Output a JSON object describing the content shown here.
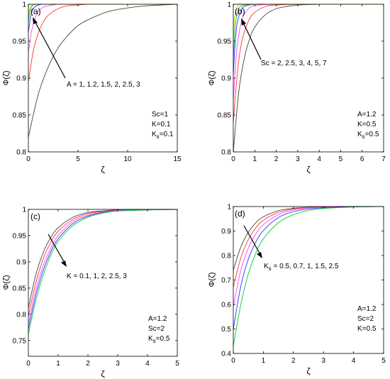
{
  "chart_data": [
    {
      "type": "line",
      "panel_label": "(a)",
      "xlabel": "ζ",
      "ylabel": "Φ(ζ)",
      "xlim": [
        0,
        15
      ],
      "ylim": [
        0.8,
        1.0
      ],
      "xticks": [
        0,
        5,
        10,
        15
      ],
      "yticks": [
        0.8,
        0.85,
        0.9,
        0.95,
        1
      ],
      "xtick_labels": [
        "0",
        "5",
        "10",
        "15"
      ],
      "ytick_labels": [
        "0.8",
        "0.85",
        "0.9",
        "0.95",
        "1"
      ],
      "series_colors": [
        "#444444",
        "#ff3333",
        "#ff44ff",
        "#3333ff",
        "#00cc33",
        "#cccc00"
      ],
      "series": [
        {
          "label": "A = 1",
          "x": [
            0,
            1,
            2,
            3,
            4,
            5,
            6,
            8,
            10,
            12,
            15
          ],
          "values": [
            0.82,
            0.878,
            0.915,
            0.941,
            0.958,
            0.971,
            0.979,
            0.99,
            0.995,
            0.998,
            1.0
          ]
        },
        {
          "label": "A = 1.2",
          "x": [
            0,
            0.5,
            1,
            1.5,
            2,
            3,
            4,
            5,
            6,
            8,
            10,
            15
          ],
          "values": [
            0.895,
            0.937,
            0.961,
            0.976,
            0.985,
            0.994,
            0.998,
            0.999,
            1.0,
            1.0,
            1.0,
            1.0
          ]
        },
        {
          "label": "A = 1.5",
          "x": [
            0,
            0.3,
            0.6,
            1,
            1.5,
            2,
            3,
            4,
            6,
            10,
            15
          ],
          "values": [
            0.935,
            0.962,
            0.978,
            0.99,
            0.996,
            0.998,
            1.0,
            1.0,
            1.0,
            1.0,
            1.0
          ]
        },
        {
          "label": "A = 2",
          "x": [
            0,
            0.2,
            0.4,
            0.7,
            1,
            1.5,
            2,
            3,
            6,
            10,
            15
          ],
          "values": [
            0.962,
            0.981,
            0.991,
            0.997,
            0.999,
            1.0,
            1.0,
            1.0,
            1.0,
            1.0,
            1.0
          ]
        },
        {
          "label": "A = 2.5",
          "x": [
            0,
            0.15,
            0.3,
            0.5,
            0.8,
            1.2,
            2,
            4,
            8,
            15
          ],
          "values": [
            0.976,
            0.99,
            0.996,
            0.999,
            1.0,
            1.0,
            1.0,
            1.0,
            1.0,
            1.0
          ]
        },
        {
          "label": "A = 3",
          "x": [
            0,
            0.1,
            0.2,
            0.4,
            0.7,
            1,
            2,
            4,
            8,
            15
          ],
          "values": [
            0.984,
            0.993,
            0.997,
            0.999,
            1.0,
            1.0,
            1.0,
            1.0,
            1.0,
            1.0
          ]
        }
      ],
      "annotations": [
        "A = 1, 1.2, 1.5, 2, 2.5, 3"
      ],
      "params": [
        "Sc=1",
        "K=0.1",
        "K",
        "s",
        "=0.1"
      ]
    },
    {
      "type": "line",
      "panel_label": "(b)",
      "xlabel": "ζ",
      "ylabel": "Φ(ζ)",
      "xlim": [
        0,
        7
      ],
      "ylim": [
        0.8,
        1.0
      ],
      "xticks": [
        0,
        1,
        2,
        3,
        4,
        5,
        6,
        7
      ],
      "yticks": [
        0.8,
        0.85,
        0.9,
        0.95,
        1
      ],
      "xtick_labels": [
        "0",
        "1",
        "2",
        "3",
        "4",
        "5",
        "6",
        "7"
      ],
      "ytick_labels": [
        "0.8",
        "0.85",
        "0.9",
        "0.95",
        "1"
      ],
      "series_colors": [
        "#444444",
        "#ff3333",
        "#ff44ff",
        "#3333ff",
        "#00cc33",
        "#cccc00"
      ],
      "series": [
        {
          "label": "Sc = 2",
          "x": [
            0,
            0.25,
            0.5,
            0.75,
            1,
            1.5,
            2,
            2.5,
            3,
            4,
            5,
            7
          ],
          "values": [
            0.8,
            0.88,
            0.925,
            0.952,
            0.969,
            0.986,
            0.994,
            0.997,
            0.999,
            1.0,
            1.0,
            1.0
          ]
        },
        {
          "label": "Sc = 2.5",
          "x": [
            0,
            0.2,
            0.4,
            0.7,
            1,
            1.5,
            2,
            3,
            4,
            7
          ],
          "values": [
            0.84,
            0.91,
            0.95,
            0.977,
            0.989,
            0.997,
            0.999,
            1.0,
            1.0,
            1.0
          ]
        },
        {
          "label": "Sc = 3",
          "x": [
            0,
            0.15,
            0.3,
            0.5,
            0.8,
            1.2,
            2,
            3,
            7
          ],
          "values": [
            0.87,
            0.935,
            0.966,
            0.986,
            0.996,
            0.999,
            1.0,
            1.0,
            1.0
          ]
        },
        {
          "label": "Sc = 4",
          "x": [
            0,
            0.1,
            0.2,
            0.4,
            0.6,
            1,
            2,
            7
          ],
          "values": [
            0.905,
            0.953,
            0.977,
            0.994,
            0.998,
            1.0,
            1.0,
            1.0
          ]
        },
        {
          "label": "Sc = 5",
          "x": [
            0,
            0.08,
            0.16,
            0.3,
            0.5,
            1,
            2,
            7
          ],
          "values": [
            0.925,
            0.966,
            0.985,
            0.996,
            0.999,
            1.0,
            1.0,
            1.0
          ]
        },
        {
          "label": "Sc = 7",
          "x": [
            0,
            0.05,
            0.1,
            0.2,
            0.4,
            1,
            7
          ],
          "values": [
            0.95,
            0.978,
            0.99,
            0.998,
            1.0,
            1.0,
            1.0
          ]
        }
      ],
      "annotations": [
        "Sc = 2, 2.5, 3, 4, 5, 7"
      ],
      "params": [
        "A=1.2",
        "K=0.5",
        "K",
        "s",
        "=0.5"
      ]
    },
    {
      "type": "line",
      "panel_label": "(c)",
      "xlabel": "ζ",
      "ylabel": "Φ(ζ)",
      "xlim": [
        0,
        5
      ],
      "ylim": [
        0.72,
        1.0
      ],
      "xticks": [
        0,
        1,
        2,
        3,
        4,
        5
      ],
      "yticks": [
        0.75,
        0.8,
        0.85,
        0.9,
        0.95,
        1
      ],
      "xtick_labels": [
        "0",
        "1",
        "2",
        "3",
        "4",
        "5"
      ],
      "ytick_labels": [
        "0.75",
        "0.8",
        "0.85",
        "0.9",
        "0.95",
        "1"
      ],
      "series_colors": [
        "#444444",
        "#ff3333",
        "#ff44ff",
        "#3333ff",
        "#00cc33",
        "#00cccc"
      ],
      "series": [
        {
          "label": "K = 0.1",
          "x": [
            0,
            0.25,
            0.5,
            0.75,
            1,
            1.5,
            2,
            2.5,
            3,
            4,
            5
          ],
          "values": [
            0.812,
            0.875,
            0.918,
            0.946,
            0.965,
            0.985,
            0.994,
            0.997,
            0.999,
            1.0,
            1.0
          ]
        },
        {
          "label": "K = 1",
          "x": [
            0,
            0.25,
            0.5,
            0.75,
            1,
            1.5,
            2,
            2.5,
            3,
            4,
            5
          ],
          "values": [
            0.797,
            0.86,
            0.906,
            0.937,
            0.958,
            0.981,
            0.992,
            0.996,
            0.998,
            1.0,
            1.0
          ]
        },
        {
          "label": "K = 2",
          "x": [
            0,
            0.25,
            0.5,
            0.75,
            1,
            1.5,
            2,
            2.5,
            3,
            4,
            5
          ],
          "values": [
            0.782,
            0.846,
            0.893,
            0.926,
            0.95,
            0.977,
            0.989,
            0.995,
            0.998,
            1.0,
            1.0
          ]
        },
        {
          "label": "K = 2.5",
          "x": [
            0,
            0.25,
            0.5,
            0.75,
            1,
            1.5,
            2,
            2.5,
            3,
            4,
            5
          ],
          "values": [
            0.772,
            0.836,
            0.884,
            0.919,
            0.944,
            0.973,
            0.987,
            0.994,
            0.997,
            0.999,
            1.0
          ]
        },
        {
          "label": "K = 3",
          "x": [
            0,
            0.25,
            0.5,
            0.75,
            1,
            1.5,
            2,
            2.5,
            3,
            4,
            5
          ],
          "values": [
            0.762,
            0.826,
            0.875,
            0.912,
            0.939,
            0.969,
            0.985,
            0.993,
            0.997,
            0.999,
            1.0
          ]
        }
      ],
      "annotations": [
        "K = 0.1, 1, 2, 2.5, 3"
      ],
      "params": [
        "A=1.2",
        "Sc=2",
        "K",
        "s",
        "=0.5"
      ]
    },
    {
      "type": "line",
      "panel_label": "(d)",
      "xlabel": "ζ",
      "ylabel": "Φ(ζ)",
      "xlim": [
        0,
        5
      ],
      "ylim": [
        0.4,
        1.0
      ],
      "xticks": [
        0,
        1,
        2,
        3,
        4,
        5
      ],
      "yticks": [
        0.4,
        0.5,
        0.6,
        0.7,
        0.8,
        0.9,
        1
      ],
      "xtick_labels": [
        "0",
        "1",
        "2",
        "3",
        "4",
        "5"
      ],
      "ytick_labels": [
        "0.4",
        "0.5",
        "0.6",
        "0.7",
        "0.8",
        "0.9",
        "1"
      ],
      "series_colors": [
        "#444444",
        "#ff3333",
        "#ff44ff",
        "#3333ff",
        "#00cc33"
      ],
      "series": [
        {
          "label": "Ks = 0.5",
          "x": [
            0,
            0.25,
            0.5,
            0.75,
            1,
            1.5,
            2,
            2.5,
            3,
            4,
            5
          ],
          "values": [
            0.74,
            0.835,
            0.895,
            0.934,
            0.958,
            0.983,
            0.993,
            0.997,
            0.999,
            1.0,
            1.0
          ]
        },
        {
          "label": "Ks = 0.7",
          "x": [
            0,
            0.25,
            0.5,
            0.75,
            1,
            1.5,
            2,
            2.5,
            3,
            4,
            5
          ],
          "values": [
            0.67,
            0.79,
            0.865,
            0.913,
            0.944,
            0.976,
            0.99,
            0.996,
            0.998,
            1.0,
            1.0
          ]
        },
        {
          "label": "Ks = 1",
          "x": [
            0,
            0.25,
            0.5,
            0.75,
            1,
            1.5,
            2,
            2.5,
            3,
            4,
            5
          ],
          "values": [
            0.59,
            0.74,
            0.83,
            0.888,
            0.926,
            0.967,
            0.986,
            0.994,
            0.997,
            0.999,
            1.0
          ]
        },
        {
          "label": "Ks = 1.5",
          "x": [
            0,
            0.25,
            0.5,
            0.75,
            1,
            1.5,
            2,
            2.5,
            3,
            4,
            5
          ],
          "values": [
            0.5,
            0.675,
            0.785,
            0.855,
            0.902,
            0.955,
            0.979,
            0.99,
            0.995,
            0.999,
            1.0
          ]
        },
        {
          "label": "Ks = 2.5",
          "x": [
            0,
            0.25,
            0.5,
            0.75,
            1,
            1.5,
            2,
            2.5,
            3,
            4,
            5
          ],
          "values": [
            0.43,
            0.6,
            0.725,
            0.81,
            0.868,
            0.934,
            0.967,
            0.984,
            0.992,
            0.998,
            1.0
          ]
        }
      ],
      "annotations": [
        "K",
        "s",
        " = 0.5, 0.7, 1, 1.5, 2.5"
      ],
      "params": [
        "A=1.2",
        "Sc=2",
        "K=0.5"
      ]
    }
  ]
}
